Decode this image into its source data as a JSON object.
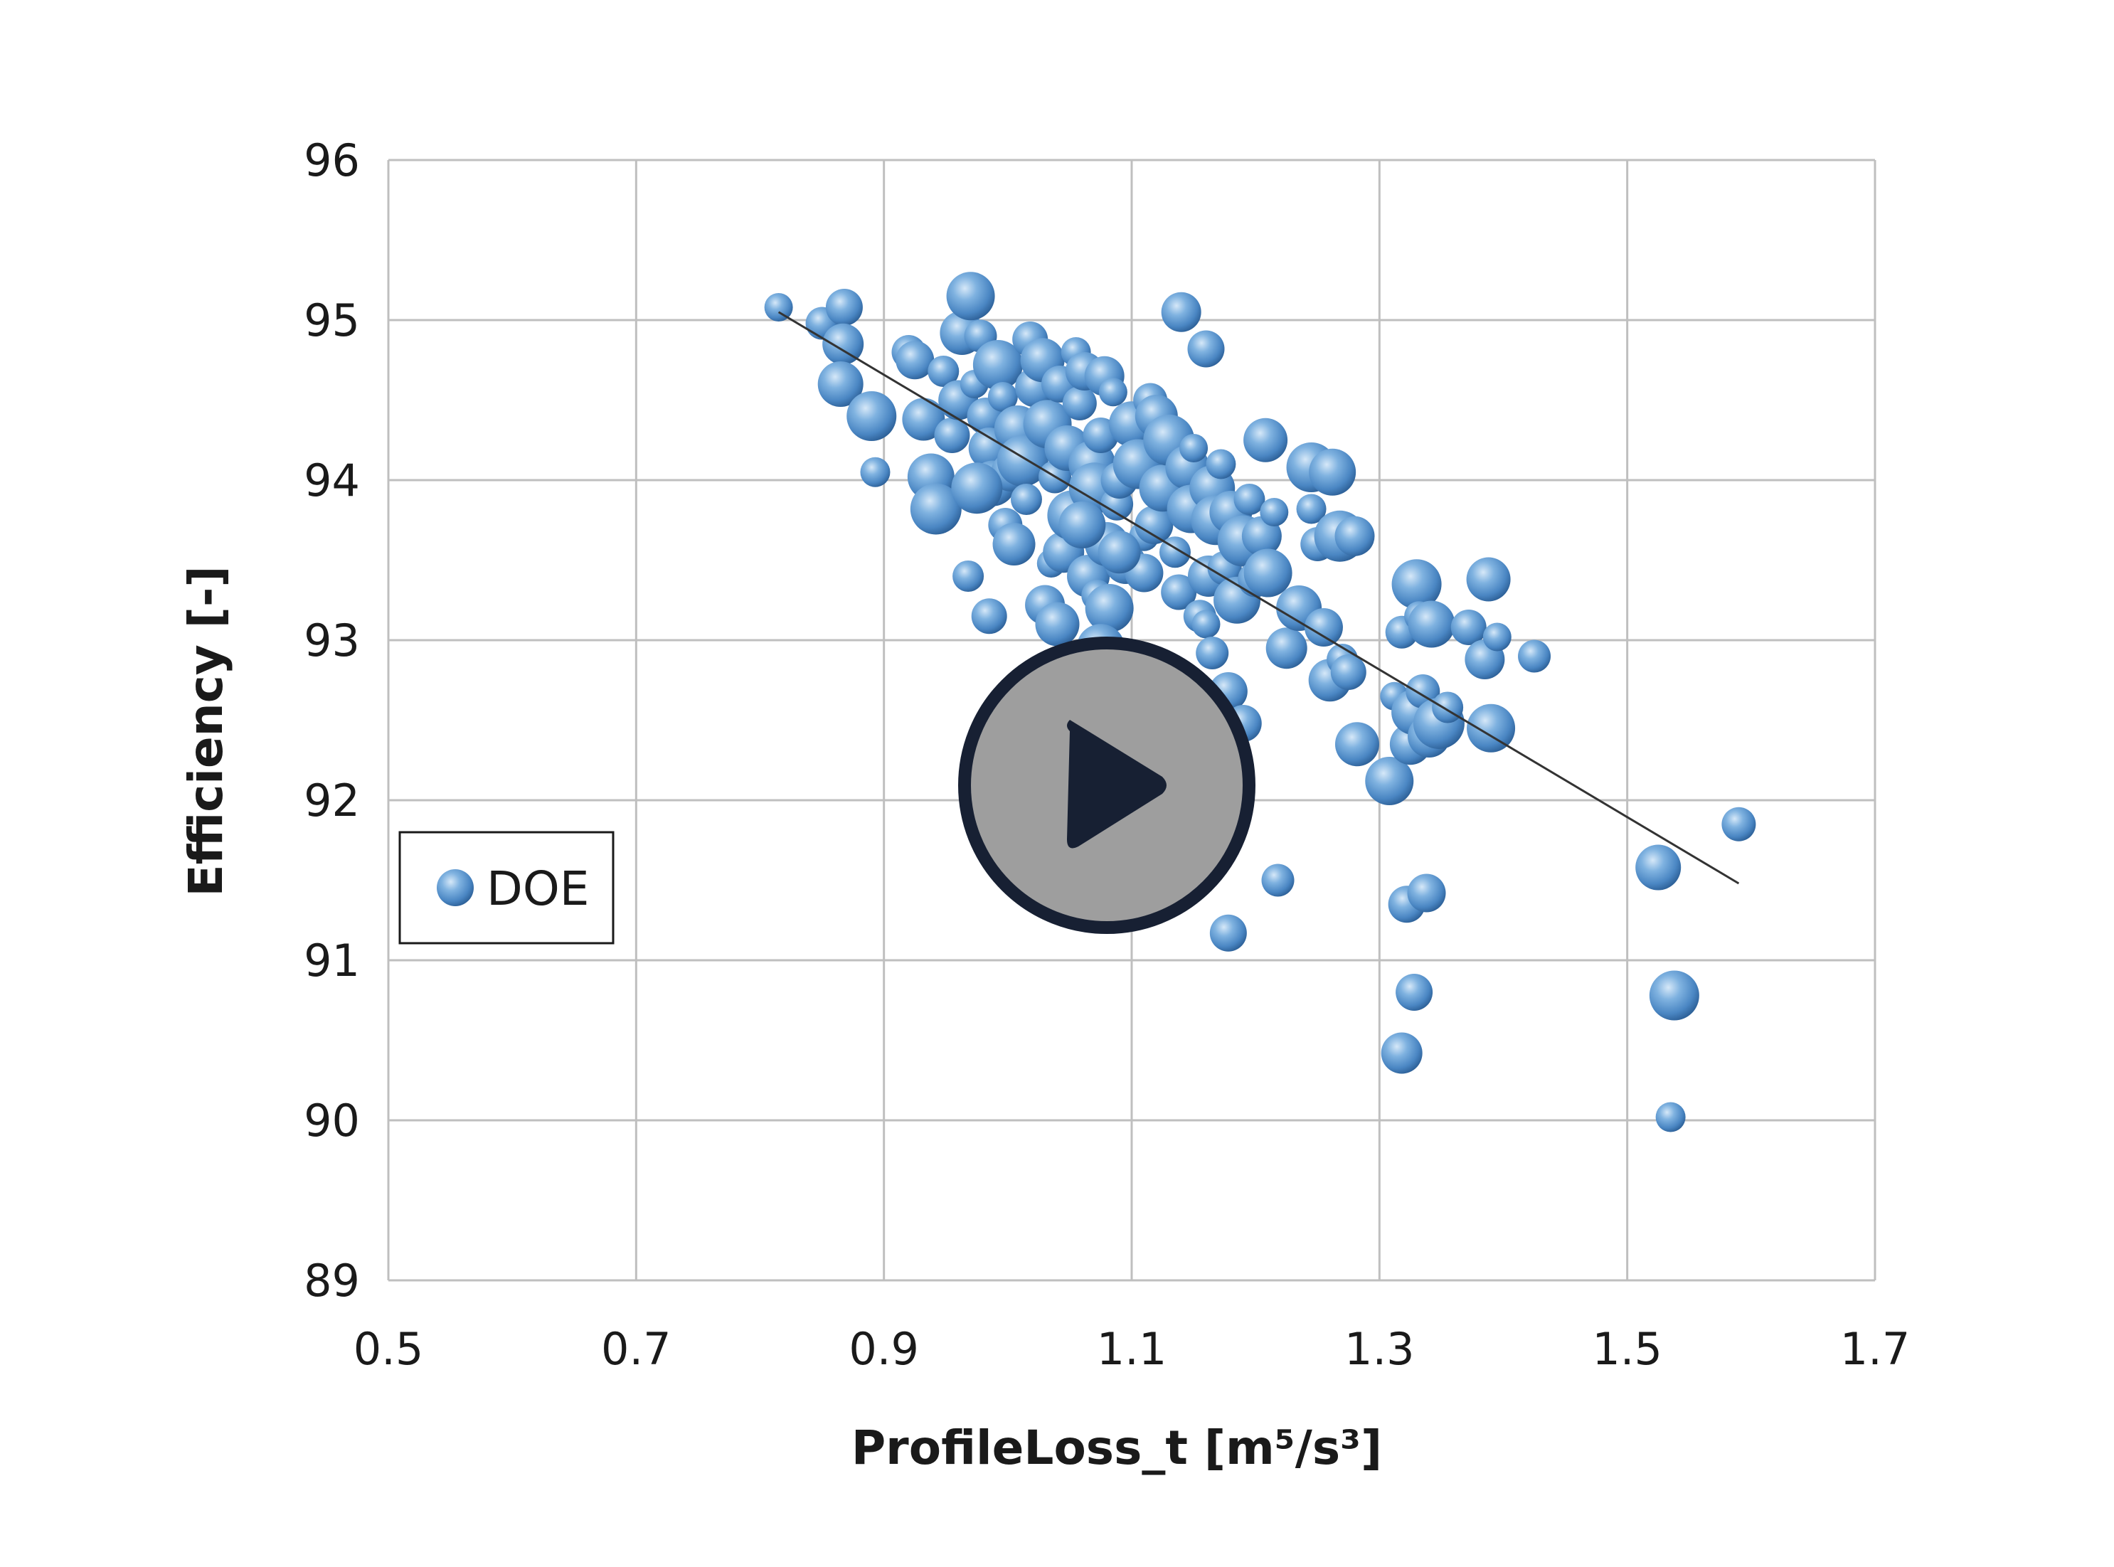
{
  "chart_data": {
    "type": "scatter",
    "title": "",
    "xlabel": "ProfileLoss_t [m⁵/s³]",
    "ylabel": "Efficiency [-]",
    "xlim": [
      0.5,
      1.7
    ],
    "ylim": [
      89,
      96
    ],
    "x_ticks": [
      "0.5",
      "0.7",
      "0.9",
      "1.1",
      "1.3",
      "1.5",
      "1.7"
    ],
    "y_ticks": [
      "89",
      "90",
      "91",
      "92",
      "93",
      "94",
      "95",
      "96"
    ],
    "grid": true,
    "legend_position": "left",
    "colors": {
      "marker": "#5b9bd5",
      "marker_dark": "#2e6aa8",
      "marker_light": "#cfe3f6",
      "grid": "#bfbfbf",
      "trendline": "#333333",
      "play_fill": "#9e9e9e",
      "play_ring": "#172033"
    },
    "series": [
      {
        "name": "DOE",
        "points": [
          [
            0.815,
            95.08
          ],
          [
            0.85,
            94.98
          ],
          [
            0.868,
            95.08
          ],
          [
            0.867,
            94.85
          ],
          [
            0.865,
            94.6
          ],
          [
            0.89,
            94.4
          ],
          [
            0.893,
            94.05
          ],
          [
            0.92,
            94.8
          ],
          [
            0.925,
            94.75
          ],
          [
            0.932,
            94.38
          ],
          [
            0.938,
            94.02
          ],
          [
            0.942,
            93.82
          ],
          [
            0.948,
            94.68
          ],
          [
            0.955,
            94.28
          ],
          [
            0.96,
            94.5
          ],
          [
            0.963,
            94.92
          ],
          [
            0.97,
            95.15
          ],
          [
            0.973,
            94.6
          ],
          [
            0.978,
            94.9
          ],
          [
            0.982,
            94.4
          ],
          [
            0.985,
            94.2
          ],
          [
            0.988,
            93.98
          ],
          [
            0.992,
            94.72
          ],
          [
            0.996,
            94.52
          ],
          [
            0.998,
            93.72
          ],
          [
            1.002,
            94.05
          ],
          [
            1.005,
            93.6
          ],
          [
            1.008,
            94.32
          ],
          [
            1.012,
            94.12
          ],
          [
            1.015,
            93.88
          ],
          [
            1.018,
            94.88
          ],
          [
            1.022,
            94.58
          ],
          [
            1.028,
            94.75
          ],
          [
            1.032,
            94.35
          ],
          [
            1.035,
            93.48
          ],
          [
            1.038,
            94.02
          ],
          [
            1.042,
            94.6
          ],
          [
            1.045,
            93.55
          ],
          [
            1.048,
            94.2
          ],
          [
            1.052,
            93.78
          ],
          [
            1.055,
            94.8
          ],
          [
            1.058,
            94.48
          ],
          [
            1.062,
            94.68
          ],
          [
            1.065,
            93.4
          ],
          [
            1.068,
            94.1
          ],
          [
            1.07,
            93.95
          ],
          [
            1.072,
            93.28
          ],
          [
            1.075,
            94.28
          ],
          [
            1.078,
            94.65
          ],
          [
            1.08,
            93.6
          ],
          [
            1.082,
            93.2
          ],
          [
            1.085,
            94.55
          ],
          [
            1.088,
            93.85
          ],
          [
            1.09,
            94.0
          ],
          [
            1.095,
            93.48
          ],
          [
            1.1,
            94.35
          ],
          [
            1.105,
            94.1
          ],
          [
            1.11,
            93.65
          ],
          [
            1.115,
            94.5
          ],
          [
            1.118,
            93.72
          ],
          [
            1.12,
            94.4
          ],
          [
            1.125,
            93.95
          ],
          [
            1.13,
            94.25
          ],
          [
            1.135,
            93.55
          ],
          [
            1.138,
            93.3
          ],
          [
            1.14,
            95.05
          ],
          [
            1.145,
            94.08
          ],
          [
            1.148,
            93.82
          ],
          [
            1.15,
            94.2
          ],
          [
            1.155,
            93.15
          ],
          [
            1.16,
            94.82
          ],
          [
            1.162,
            93.4
          ],
          [
            1.165,
            93.95
          ],
          [
            1.168,
            93.75
          ],
          [
            1.172,
            94.1
          ],
          [
            1.175,
            93.45
          ],
          [
            1.178,
            92.68
          ],
          [
            1.18,
            93.8
          ],
          [
            1.185,
            93.25
          ],
          [
            1.19,
            93.62
          ],
          [
            1.195,
            93.88
          ],
          [
            1.2,
            93.38
          ],
          [
            1.205,
            93.65
          ],
          [
            1.208,
            94.25
          ],
          [
            1.21,
            93.42
          ],
          [
            1.215,
            93.8
          ],
          [
            1.218,
            91.5
          ],
          [
            1.178,
            91.17
          ],
          [
            1.225,
            92.95
          ],
          [
            1.235,
            93.2
          ],
          [
            1.245,
            94.08
          ],
          [
            1.245,
            93.82
          ],
          [
            1.25,
            93.6
          ],
          [
            1.255,
            93.08
          ],
          [
            1.26,
            92.75
          ],
          [
            1.262,
            94.05
          ],
          [
            1.268,
            93.65
          ],
          [
            1.27,
            92.88
          ],
          [
            1.275,
            92.8
          ],
          [
            1.28,
            93.65
          ],
          [
            1.282,
            92.35
          ],
          [
            1.308,
            92.12
          ],
          [
            1.312,
            92.65
          ],
          [
            1.318,
            93.05
          ],
          [
            1.322,
            91.35
          ],
          [
            1.325,
            92.35
          ],
          [
            1.328,
            92.55
          ],
          [
            1.33,
            93.35
          ],
          [
            1.332,
            93.15
          ],
          [
            1.335,
            92.68
          ],
          [
            1.338,
            91.42
          ],
          [
            1.34,
            92.4
          ],
          [
            1.342,
            93.1
          ],
          [
            1.348,
            92.48
          ],
          [
            1.355,
            92.58
          ],
          [
            1.372,
            93.08
          ],
          [
            1.385,
            92.88
          ],
          [
            1.388,
            93.38
          ],
          [
            1.39,
            92.45
          ],
          [
            1.395,
            93.02
          ],
          [
            1.425,
            92.9
          ],
          [
            1.328,
            90.8
          ],
          [
            1.318,
            90.42
          ],
          [
            1.525,
            91.58
          ],
          [
            1.538,
            90.78
          ],
          [
            1.535,
            90.02
          ],
          [
            1.59,
            91.85
          ],
          [
            1.11,
            93.42
          ],
          [
            1.09,
            93.55
          ],
          [
            1.06,
            93.72
          ],
          [
            0.975,
            93.95
          ],
          [
            0.968,
            93.4
          ],
          [
            0.985,
            93.15
          ],
          [
            1.03,
            93.22
          ],
          [
            1.04,
            93.1
          ],
          [
            1.075,
            92.95
          ],
          [
            1.16,
            93.1
          ],
          [
            1.165,
            92.92
          ],
          [
            1.19,
            92.48
          ]
        ]
      }
    ],
    "trendline": {
      "x": [
        0.815,
        1.59
      ],
      "y": [
        95.05,
        91.48
      ]
    }
  },
  "overlay": {
    "play_icon": "play-icon"
  }
}
